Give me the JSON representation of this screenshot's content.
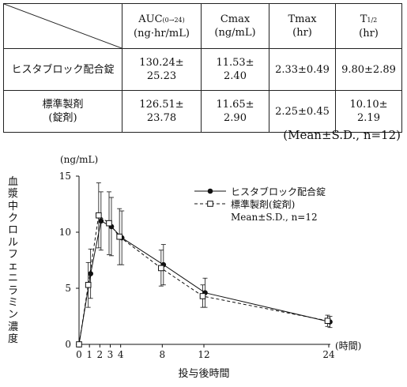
{
  "table": {
    "headers": [
      {
        "main": "AUC",
        "sub": "(0→24)",
        "unit": "(ng·hr/mL)"
      },
      {
        "main": "Cmax",
        "sub": "",
        "unit": "(ng/mL)"
      },
      {
        "main": "Tmax",
        "sub": "",
        "unit": "(hr)"
      },
      {
        "main": "T",
        "sub": "1/2",
        "unit": "(hr)"
      }
    ],
    "rows": [
      {
        "label": [
          "ヒスタブロック配合錠"
        ],
        "cells": [
          [
            "130.24±",
            "25.23"
          ],
          [
            "11.53±",
            "2.40"
          ],
          [
            "2.33±0.49"
          ],
          [
            "9.80±2.89"
          ]
        ]
      },
      {
        "label": [
          "標準製剤",
          "(錠剤)"
        ],
        "cells": [
          [
            "126.51±",
            "23.78"
          ],
          [
            "11.65±",
            "2.90"
          ],
          [
            "2.25±0.45"
          ],
          [
            "10.10±",
            "2.19"
          ]
        ]
      }
    ],
    "note": "(Mean±S.D.,  n=12)"
  },
  "chart_data": {
    "type": "line",
    "yunit": "(ng/mL)",
    "ylabel": "血漿中クロルフェニラミン濃度",
    "xlabel": "投与後時間",
    "xunit": "(時間)",
    "xticks": [
      0,
      1,
      2,
      3,
      4,
      8,
      12,
      24
    ],
    "yticks": [
      0,
      5,
      10,
      15
    ],
    "xlim": [
      0,
      24
    ],
    "ylim": [
      0,
      15
    ],
    "x": [
      0,
      1,
      2,
      3,
      4,
      8,
      12,
      24
    ],
    "series": [
      {
        "name": "ヒスタブロック配合錠",
        "marker": "filled-circle",
        "line": "solid",
        "values": [
          0,
          6.3,
          11.0,
          10.5,
          9.5,
          7.1,
          4.6,
          2.0
        ],
        "sd": [
          0,
          2.2,
          2.6,
          2.6,
          2.4,
          1.8,
          1.3,
          0.5
        ]
      },
      {
        "name": "標準製剤(錠剤)",
        "marker": "open-square",
        "line": "dashed",
        "values": [
          0,
          5.3,
          11.5,
          10.8,
          9.6,
          6.8,
          4.3,
          2.1
        ],
        "sd": [
          0,
          2.0,
          2.9,
          2.8,
          2.5,
          1.6,
          1.0,
          0.5
        ]
      }
    ],
    "legend_note": "Mean±S.D.,  n=12",
    "legend_position": "top-right"
  }
}
